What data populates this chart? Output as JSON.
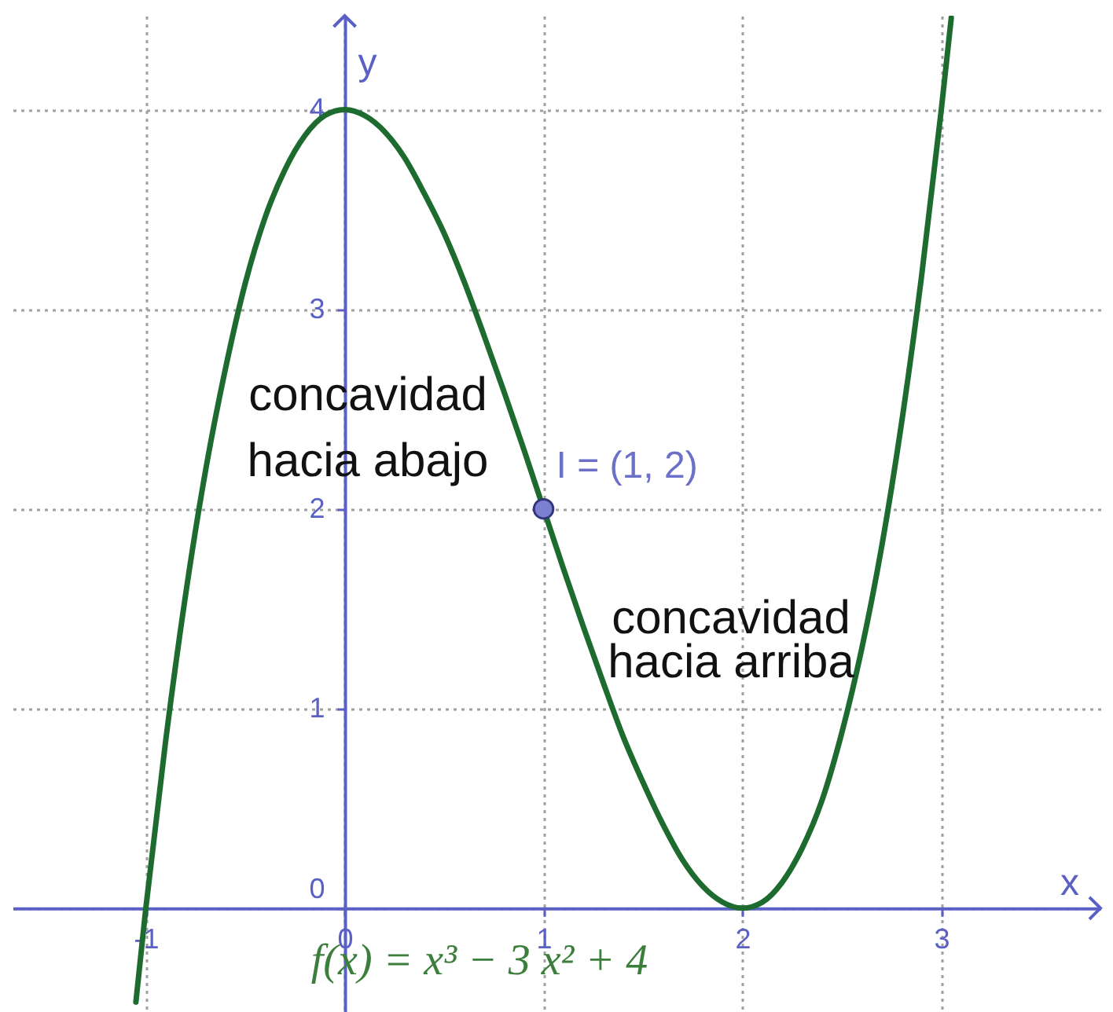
{
  "chart_data": {
    "type": "line",
    "xlabel": "x",
    "ylabel": "y",
    "xlim": [
      -1.67,
      3.8
    ],
    "ylim": [
      -0.52,
      4.47
    ],
    "xticks": [
      -1,
      0,
      1,
      2,
      3
    ],
    "yticks": [
      0,
      1,
      2,
      3,
      4
    ],
    "grid": true,
    "series": [
      {
        "color": "#1d6b2f",
        "line_style": "solid",
        "x": [
          -1.05,
          -1.0,
          -0.9,
          -0.8,
          -0.7,
          -0.6,
          -0.5,
          -0.4,
          -0.3,
          -0.2,
          -0.1,
          0,
          0.1,
          0.2,
          0.3,
          0.4,
          0.5,
          0.6,
          0.7,
          0.8,
          0.9,
          1.0,
          1.1,
          1.2,
          1.3,
          1.4,
          1.5,
          1.6,
          1.7,
          1.8,
          1.9,
          2.0,
          2.1,
          2.2,
          2.3,
          2.4,
          2.5,
          2.6,
          2.7,
          2.8,
          2.9,
          3.0,
          3.05
        ],
        "values": [
          -0.47,
          0,
          0.84,
          1.57,
          2.19,
          2.7,
          3.13,
          3.46,
          3.7,
          3.87,
          3.97,
          4,
          3.97,
          3.89,
          3.76,
          3.58,
          3.38,
          3.14,
          2.87,
          2.59,
          2.3,
          2,
          1.7,
          1.41,
          1.13,
          0.86,
          0.63,
          0.42,
          0.24,
          0.11,
          0.03,
          0,
          0.03,
          0.13,
          0.3,
          0.54,
          0.88,
          1.3,
          1.81,
          2.43,
          3.16,
          4,
          4.46
        ]
      },
      {
        "type": "scatter",
        "color": "#7c80d0",
        "marker": "circle",
        "x": [
          1
        ],
        "values": [
          2
        ]
      }
    ],
    "annotations": [
      "concavidad\nhacia abajo",
      {
        "text": "I = (1, 2)",
        "x": 1,
        "y": 2
      },
      "concavidad\nhacia arriba",
      "f(x) = x³ − 3 x² + 4"
    ]
  }
}
